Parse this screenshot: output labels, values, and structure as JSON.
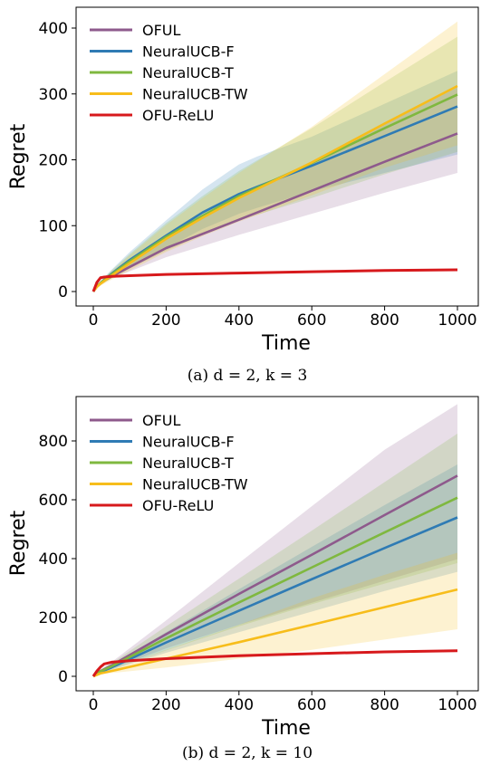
{
  "colors": {
    "OFUL": "#8e5a8c",
    "NeuralUCB-F": "#2f7bb4",
    "NeuralUCB-T": "#7fb83f",
    "NeuralUCB-TW": "#f7bd1b",
    "OFU-ReLU": "#d7191c"
  },
  "chart_data": [
    {
      "type": "line",
      "caption": "(a) d = 2, k = 3",
      "xlabel": "Time",
      "ylabel": "Regret",
      "xlim": [
        0,
        1000
      ],
      "ylim": [
        0,
        410
      ],
      "xticks": [
        0,
        200,
        400,
        600,
        800,
        1000
      ],
      "yticks": [
        0,
        100,
        200,
        300,
        400
      ],
      "legend": "top-left",
      "grid": false,
      "series": [
        {
          "name": "OFUL",
          "x": [
            0,
            10,
            20,
            50,
            200,
            400,
            600,
            800,
            1000
          ],
          "y": [
            0,
            8,
            13,
            23,
            66,
            109,
            153,
            197,
            240
          ],
          "lower": [
            0,
            7,
            12,
            20,
            52,
            86,
            118,
            150,
            180
          ],
          "upper": [
            0,
            9,
            15,
            27,
            84,
            140,
            197,
            254,
            310
          ]
        },
        {
          "name": "NeuralUCB-F",
          "x": [
            0,
            10,
            20,
            50,
            100,
            200,
            300,
            400,
            450,
            600,
            800,
            1000
          ],
          "y": [
            0,
            8,
            13,
            27,
            48,
            85,
            120,
            148,
            159,
            191,
            236,
            281
          ],
          "lower": [
            0,
            6,
            10,
            21,
            37,
            66,
            95,
            118,
            127,
            152,
            180,
            208
          ],
          "upper": [
            0,
            10,
            16,
            33,
            60,
            108,
            155,
            193,
            205,
            235,
            285,
            335
          ]
        },
        {
          "name": "NeuralUCB-T",
          "x": [
            0,
            10,
            20,
            50,
            100,
            200,
            300,
            400,
            600,
            800,
            1000
          ],
          "y": [
            0,
            8,
            13,
            26,
            46,
            83,
            115,
            145,
            195,
            248,
            299
          ],
          "lower": [
            0,
            6,
            10,
            20,
            35,
            62,
            86,
            108,
            142,
            178,
            212
          ],
          "upper": [
            0,
            10,
            16,
            32,
            57,
            104,
            145,
            183,
            248,
            318,
            387
          ]
        },
        {
          "name": "NeuralUCB-TW",
          "x": [
            0,
            10,
            20,
            50,
            100,
            200,
            300,
            400,
            600,
            800,
            1000
          ],
          "y": [
            0,
            7,
            12,
            24,
            43,
            80,
            112,
            142,
            196,
            255,
            312
          ],
          "lower": [
            0,
            5,
            9,
            18,
            32,
            60,
            84,
            106,
            146,
            188,
            222
          ],
          "upper": [
            0,
            9,
            15,
            30,
            55,
            101,
            142,
            180,
            250,
            330,
            410
          ]
        },
        {
          "name": "OFU-ReLU",
          "x": [
            0,
            10,
            20,
            30,
            50,
            100,
            200,
            400,
            600,
            800,
            1000
          ],
          "y": [
            0,
            14,
            21,
            22,
            23,
            24,
            26,
            28,
            30,
            32,
            33
          ],
          "lower": [
            0,
            14,
            21,
            22,
            23,
            24,
            26,
            28,
            30,
            32,
            33
          ],
          "upper": [
            0,
            14,
            21,
            22,
            23,
            24,
            26,
            28,
            30,
            32,
            33
          ]
        }
      ]
    },
    {
      "type": "line",
      "caption": "(b) d = 2, k = 10",
      "xlabel": "Time",
      "ylabel": "Regret",
      "xlim": [
        0,
        1000
      ],
      "ylim": [
        0,
        920
      ],
      "xticks": [
        0,
        200,
        400,
        600,
        800,
        1000
      ],
      "yticks": [
        0,
        200,
        400,
        600,
        800
      ],
      "legend": "top-left",
      "grid": false,
      "series": [
        {
          "name": "OFUL",
          "x": [
            0,
            10,
            20,
            50,
            200,
            400,
            600,
            800,
            1000
          ],
          "y": [
            0,
            10,
            18,
            37,
            143,
            280,
            413,
            548,
            682
          ],
          "lower": [
            0,
            8,
            13,
            26,
            95,
            175,
            250,
            325,
            398
          ],
          "upper": [
            0,
            12,
            23,
            48,
            190,
            385,
            578,
            770,
            925
          ]
        },
        {
          "name": "NeuralUCB-F",
          "x": [
            0,
            10,
            20,
            50,
            200,
            400,
            600,
            800,
            1000
          ],
          "y": [
            0,
            9,
            15,
            30,
            115,
            223,
            330,
            436,
            540
          ],
          "lower": [
            0,
            7,
            11,
            22,
            80,
            150,
            220,
            290,
            355
          ],
          "upper": [
            0,
            11,
            19,
            38,
            150,
            296,
            440,
            582,
            720
          ]
        },
        {
          "name": "NeuralUCB-T",
          "x": [
            0,
            10,
            20,
            50,
            200,
            400,
            600,
            800,
            1000
          ],
          "y": [
            0,
            10,
            17,
            34,
            129,
            251,
            370,
            489,
            607
          ],
          "lower": [
            0,
            7,
            12,
            24,
            88,
            170,
            245,
            315,
            385
          ],
          "upper": [
            0,
            12,
            22,
            44,
            170,
            332,
            495,
            660,
            825
          ]
        },
        {
          "name": "NeuralUCB-TW",
          "x": [
            0,
            10,
            20,
            50,
            200,
            400,
            600,
            800,
            1000
          ],
          "y": [
            0,
            5,
            10,
            18,
            60,
            116,
            175,
            235,
            295
          ],
          "lower": [
            0,
            3,
            6,
            11,
            30,
            60,
            90,
            125,
            160
          ],
          "upper": [
            0,
            7,
            14,
            25,
            90,
            175,
            265,
            345,
            420
          ]
        },
        {
          "name": "OFU-ReLU",
          "x": [
            0,
            10,
            20,
            30,
            50,
            100,
            200,
            400,
            600,
            800,
            1000
          ],
          "y": [
            0,
            18,
            32,
            42,
            48,
            53,
            60,
            70,
            77,
            83,
            87
          ],
          "lower": [
            0,
            18,
            32,
            42,
            48,
            53,
            60,
            70,
            77,
            83,
            87
          ],
          "upper": [
            0,
            18,
            32,
            42,
            48,
            53,
            60,
            70,
            77,
            83,
            87
          ]
        }
      ]
    }
  ]
}
